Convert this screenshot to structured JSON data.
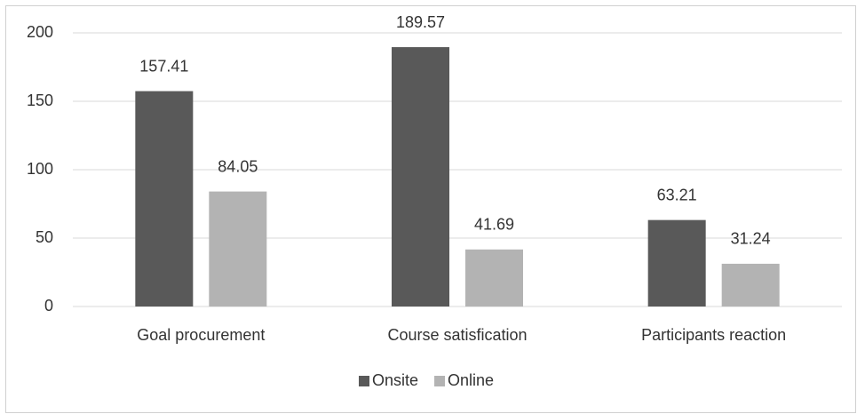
{
  "chart_data": {
    "type": "bar",
    "categories": [
      "Goal procurement",
      "Course satisfication",
      "Participants reaction"
    ],
    "series": [
      {
        "name": "Onsite",
        "color": "#595959",
        "values": [
          157.41,
          189.57,
          63.21
        ]
      },
      {
        "name": "Online",
        "color": "#b3b3b3",
        "values": [
          84.05,
          41.69,
          31.24
        ]
      }
    ],
    "ylim": [
      0,
      200
    ],
    "yticks": [
      0,
      50,
      100,
      150,
      200
    ],
    "grid": true,
    "legend": "bottom"
  }
}
